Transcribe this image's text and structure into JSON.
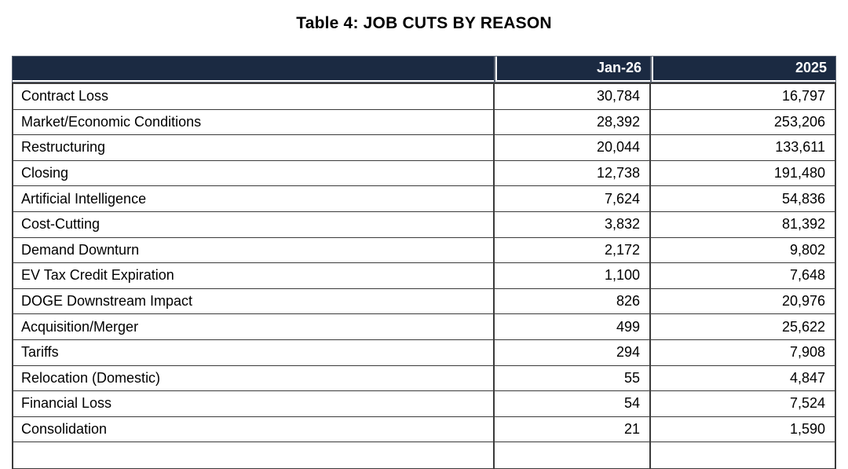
{
  "page": {
    "title": "Table 4: JOB CUTS BY REASON"
  },
  "table": {
    "columns": [
      {
        "label": ""
      },
      {
        "label": "Jan-26"
      },
      {
        "label": "2025"
      }
    ],
    "rows": [
      {
        "reason": "Contract Loss",
        "jan26": "30,784",
        "y2025": "16,797"
      },
      {
        "reason": "Market/Economic Conditions",
        "jan26": "28,392",
        "y2025": "253,206"
      },
      {
        "reason": "Restructuring",
        "jan26": "20,044",
        "y2025": "133,611"
      },
      {
        "reason": "Closing",
        "jan26": "12,738",
        "y2025": "191,480"
      },
      {
        "reason": "Artificial Intelligence",
        "jan26": "7,624",
        "y2025": "54,836"
      },
      {
        "reason": "Cost-Cutting",
        "jan26": "3,832",
        "y2025": "81,392"
      },
      {
        "reason": "Demand Downturn",
        "jan26": "2,172",
        "y2025": "9,802"
      },
      {
        "reason": "EV Tax Credit Expiration",
        "jan26": "1,100",
        "y2025": "7,648"
      },
      {
        "reason": "DOGE Downstream Impact",
        "jan26": "826",
        "y2025": "20,976"
      },
      {
        "reason": "Acquisition/Merger",
        "jan26": "499",
        "y2025": "25,622"
      },
      {
        "reason": "Tariffs",
        "jan26": "294",
        "y2025": "7,908"
      },
      {
        "reason": "Relocation (Domestic)",
        "jan26": "55",
        "y2025": "4,847"
      },
      {
        "reason": "Financial Loss",
        "jan26": "54",
        "y2025": "7,524"
      },
      {
        "reason": "Consolidation",
        "jan26": "21",
        "y2025": "1,590"
      }
    ]
  },
  "colors": {
    "header_bg": "#1b2a42",
    "header_text": "#ffffff",
    "cell_border": "#3a3a3a",
    "page_bg": "#ffffff"
  }
}
